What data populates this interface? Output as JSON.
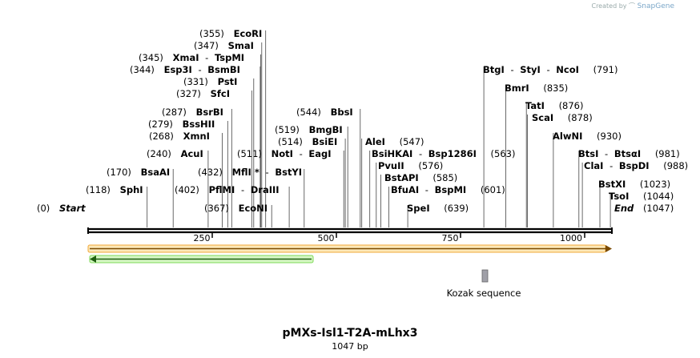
{
  "credit": {
    "prefix": "Created by",
    "brand": "SnapGene"
  },
  "sequence": {
    "name": "pMXs-Isl1-T2A-mLhx3",
    "length_label": "1047 bp",
    "length": 1047
  },
  "axis_ticks": [
    "250",
    "500",
    "750",
    "1000"
  ],
  "features": {
    "kozak_label": "Kozak sequence",
    "orange_arrow": {
      "start": 1,
      "end": 1047,
      "direction": "forward",
      "color": "#f5c26b"
    },
    "green_arrow": {
      "start": 1,
      "end": 449,
      "direction": "reverse",
      "color": "#7ed957"
    },
    "kozak": {
      "start": 792,
      "end": 801,
      "color": "#a0a0a8"
    }
  },
  "sites": [
    {
      "type": "terminal",
      "pos_label": "(0)",
      "name": "Start",
      "pos": 0
    },
    {
      "type": "enzyme",
      "pos_label": "(118)",
      "names": [
        "SphI"
      ],
      "pos": 118
    },
    {
      "type": "enzyme",
      "pos_label": "(170)",
      "names": [
        "BsaAI"
      ],
      "pos": 170
    },
    {
      "type": "enzyme",
      "pos_label": "(240)",
      "names": [
        "AcuI"
      ],
      "pos": 240
    },
    {
      "type": "enzyme",
      "pos_label": "(268)",
      "names": [
        "XmnI"
      ],
      "pos": 268
    },
    {
      "type": "enzyme",
      "pos_label": "(279)",
      "names": [
        "BssHII"
      ],
      "pos": 279
    },
    {
      "type": "enzyme",
      "pos_label": "(287)",
      "names": [
        "BsrBI"
      ],
      "pos": 287
    },
    {
      "type": "enzyme",
      "pos_label": "(327)",
      "names": [
        "SfcI"
      ],
      "pos": 327
    },
    {
      "type": "enzyme",
      "pos_label": "(331)",
      "names": [
        "PstI"
      ],
      "pos": 331
    },
    {
      "type": "enzyme",
      "pos_label": "(344)",
      "names": [
        "Esp3I",
        "BsmBI"
      ],
      "pos": 344
    },
    {
      "type": "enzyme",
      "pos_label": "(345)",
      "names": [
        "XmaI",
        "TspMI"
      ],
      "pos": 345
    },
    {
      "type": "enzyme",
      "pos_label": "(347)",
      "names": [
        "SmaI"
      ],
      "pos": 347
    },
    {
      "type": "enzyme",
      "pos_label": "(355)",
      "names": [
        "EcoRI"
      ],
      "pos": 355
    },
    {
      "type": "enzyme",
      "pos_label": "(367)",
      "names": [
        "EcoNI"
      ],
      "pos": 367
    },
    {
      "type": "enzyme",
      "pos_label": "(402)",
      "names": [
        "PflMI",
        "DraIII"
      ],
      "pos": 402
    },
    {
      "type": "enzyme",
      "pos_label": "(432)",
      "names": [
        "MflI *",
        "BstYI"
      ],
      "pos": 432
    },
    {
      "type": "enzyme",
      "pos_label": "(511)",
      "names": [
        "NotI",
        "EagI"
      ],
      "pos": 511
    },
    {
      "type": "enzyme",
      "pos_label": "(514)",
      "names": [
        "BsiEI"
      ],
      "pos": 514
    },
    {
      "type": "enzyme",
      "pos_label": "(519)",
      "names": [
        "BmgBI"
      ],
      "pos": 519
    },
    {
      "type": "enzyme",
      "pos_label": "(544)",
      "names": [
        "BbsI"
      ],
      "pos": 544
    },
    {
      "type": "enzyme",
      "pos_label": "(547)",
      "names": [
        "AleI"
      ],
      "pos": 547
    },
    {
      "type": "enzyme",
      "pos_label": "(563)",
      "names": [
        "BsiHKAI",
        "Bsp1286I"
      ],
      "pos": 563
    },
    {
      "type": "enzyme",
      "pos_label": "(576)",
      "names": [
        "PvuII"
      ],
      "pos": 576
    },
    {
      "type": "enzyme",
      "pos_label": "(585)",
      "names": [
        "BstAPI"
      ],
      "pos": 585
    },
    {
      "type": "enzyme",
      "pos_label": "(601)",
      "names": [
        "BfuAI",
        "BspMI"
      ],
      "pos": 601
    },
    {
      "type": "enzyme",
      "pos_label": "(639)",
      "names": [
        "SpeI"
      ],
      "pos": 639
    },
    {
      "type": "enzyme",
      "pos_label": "(791)",
      "names": [
        "BtgI",
        "StyI",
        "NcoI"
      ],
      "pos": 791
    },
    {
      "type": "enzyme",
      "pos_label": "(835)",
      "names": [
        "BmrI"
      ],
      "pos": 835
    },
    {
      "type": "enzyme",
      "pos_label": "(876)",
      "names": [
        "TatI"
      ],
      "pos": 876
    },
    {
      "type": "enzyme",
      "pos_label": "(878)",
      "names": [
        "ScaI"
      ],
      "pos": 878
    },
    {
      "type": "enzyme",
      "pos_label": "(930)",
      "names": [
        "AlwNI"
      ],
      "pos": 930
    },
    {
      "type": "enzyme",
      "pos_label": "(981)",
      "names": [
        "BtsI",
        "BtsαI"
      ],
      "pos": 981
    },
    {
      "type": "enzyme",
      "pos_label": "(988)",
      "names": [
        "ClaI",
        "BspDI"
      ],
      "pos": 988
    },
    {
      "type": "enzyme",
      "pos_label": "(1023)",
      "names": [
        "BstXI"
      ],
      "pos": 1023
    },
    {
      "type": "enzyme",
      "pos_label": "(1044)",
      "names": [
        "TsoI"
      ],
      "pos": 1044
    },
    {
      "type": "terminal",
      "pos_label": "(1047)",
      "name": "End",
      "pos": 1047
    }
  ]
}
